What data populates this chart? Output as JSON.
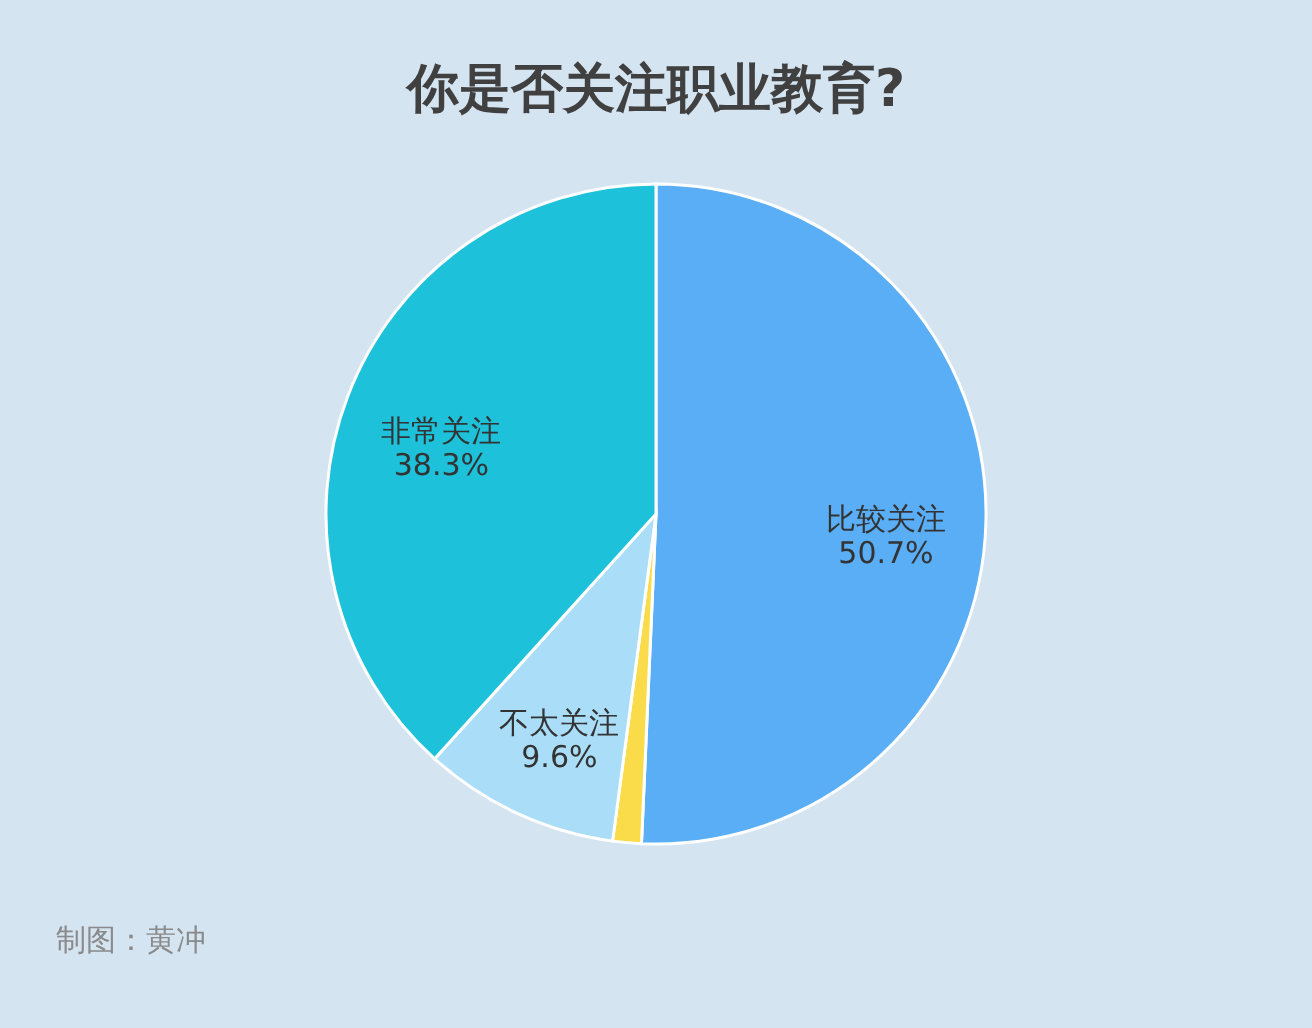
{
  "chart_data": {
    "type": "pie",
    "title": "你是否关注职业教育?",
    "categories": [
      "比较关注",
      null,
      "不太关注",
      "非常关注"
    ],
    "values": [
      50.7,
      1.4,
      9.6,
      38.3
    ],
    "value_labels": [
      "50.7%",
      null,
      "9.6%",
      "38.3%"
    ],
    "colors": [
      "#5aaef5",
      "#fadb4a",
      "#a9ddf8",
      "#1dc1da"
    ],
    "annotations": [
      "制图：黄冲"
    ]
  }
}
